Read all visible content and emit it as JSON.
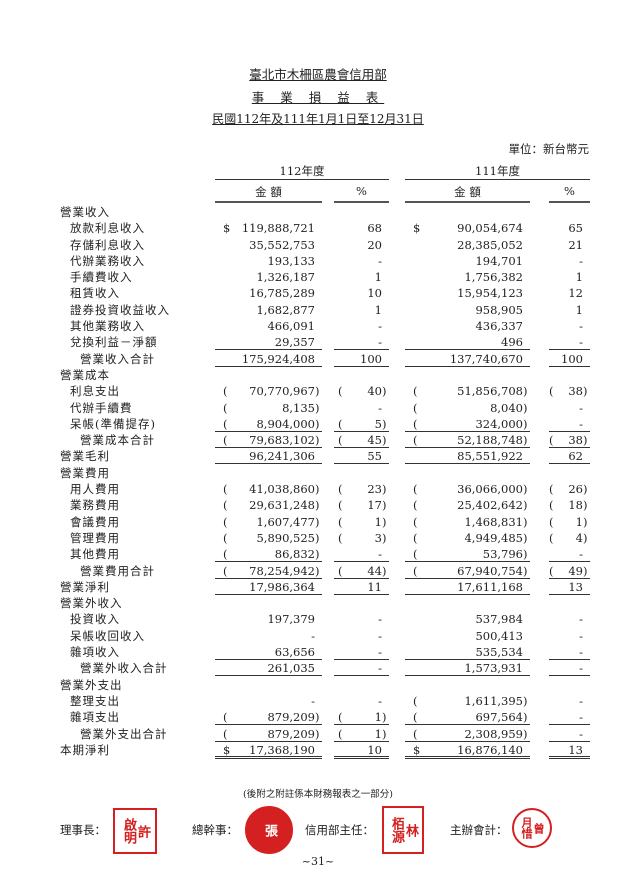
{
  "header": {
    "org": "臺北市木柵區農會信用部",
    "title": "事 業 損 益 表",
    "period": "民國112年及111年1月1日至12月31日",
    "unit": "單位：新台幣元"
  },
  "columns": {
    "year_a": "112年度",
    "year_b": "111年度",
    "amount": "金 額",
    "percent": "%"
  },
  "rows": [
    {
      "label": "營業收入",
      "indent": 0
    },
    {
      "label": "放款利息收入",
      "indent": 1,
      "a": {
        "pre": "$",
        "v": "119,888,721"
      },
      "pa": {
        "v": "68"
      },
      "b": {
        "pre": "$",
        "v": "90,054,674"
      },
      "pb": {
        "v": "65"
      }
    },
    {
      "label": "存儲利息收入",
      "indent": 1,
      "a": {
        "v": "35,552,753"
      },
      "pa": {
        "v": "20"
      },
      "b": {
        "v": "28,385,052"
      },
      "pb": {
        "v": "21"
      }
    },
    {
      "label": "代辦業務收入",
      "indent": 1,
      "a": {
        "v": "193,133"
      },
      "pa": {
        "v": "-"
      },
      "b": {
        "v": "194,701"
      },
      "pb": {
        "v": "-"
      }
    },
    {
      "label": "手續費收入",
      "indent": 1,
      "a": {
        "v": "1,326,187"
      },
      "pa": {
        "v": "1"
      },
      "b": {
        "v": "1,756,382"
      },
      "pb": {
        "v": "1"
      }
    },
    {
      "label": "租賃收入",
      "indent": 1,
      "a": {
        "v": "16,785,289"
      },
      "pa": {
        "v": "10"
      },
      "b": {
        "v": "15,954,123"
      },
      "pb": {
        "v": "12"
      }
    },
    {
      "label": "證券投資收益收入",
      "indent": 1,
      "a": {
        "v": "1,682,877"
      },
      "pa": {
        "v": "1"
      },
      "b": {
        "v": "958,905"
      },
      "pb": {
        "v": "1"
      }
    },
    {
      "label": "其他業務收入",
      "indent": 1,
      "a": {
        "v": "466,091"
      },
      "pa": {
        "v": "-"
      },
      "b": {
        "v": "436,337"
      },
      "pb": {
        "v": "-"
      }
    },
    {
      "label": "兌換利益－淨額",
      "indent": 1,
      "rule": "single",
      "a": {
        "v": "29,357"
      },
      "pa": {
        "v": "-"
      },
      "b": {
        "v": "496"
      },
      "pb": {
        "v": "-"
      }
    },
    {
      "label": "營業收入合計",
      "indent": 2,
      "rule": "single",
      "a": {
        "v": "175,924,408"
      },
      "pa": {
        "v": "100"
      },
      "b": {
        "v": "137,740,670"
      },
      "pb": {
        "v": "100"
      }
    },
    {
      "label": "營業成本",
      "indent": 0
    },
    {
      "label": "利息支出",
      "indent": 1,
      "a": {
        "v": "70,770,967",
        "neg": true
      },
      "pa": {
        "v": "40",
        "neg": true
      },
      "b": {
        "v": "51,856,708",
        "neg": true
      },
      "pb": {
        "v": "38",
        "neg": true
      }
    },
    {
      "label": "代辦手續費",
      "indent": 1,
      "a": {
        "v": "8,135",
        "neg": true
      },
      "pa": {
        "v": "-"
      },
      "b": {
        "v": "8,040",
        "neg": true
      },
      "pb": {
        "v": "-"
      }
    },
    {
      "label": "呆帳(準備提存)",
      "indent": 1,
      "rule": "single",
      "a": {
        "v": "8,904,000",
        "neg": true
      },
      "pa": {
        "v": "5",
        "neg": true
      },
      "b": {
        "v": "324,000",
        "neg": true
      },
      "pb": {
        "v": "-"
      }
    },
    {
      "label": "營業成本合計",
      "indent": 2,
      "rule": "single",
      "a": {
        "v": "79,683,102",
        "neg": true
      },
      "pa": {
        "v": "45",
        "neg": true
      },
      "b": {
        "v": "52,188,748",
        "neg": true
      },
      "pb": {
        "v": "38",
        "neg": true
      }
    },
    {
      "label": "營業毛利",
      "indent": 0,
      "rule": "single",
      "a": {
        "v": "96,241,306"
      },
      "pa": {
        "v": "55"
      },
      "b": {
        "v": "85,551,922"
      },
      "pb": {
        "v": "62"
      }
    },
    {
      "label": "營業費用",
      "indent": 0
    },
    {
      "label": "用人費用",
      "indent": 1,
      "a": {
        "v": "41,038,860",
        "neg": true
      },
      "pa": {
        "v": "23",
        "neg": true
      },
      "b": {
        "v": "36,066,000",
        "neg": true
      },
      "pb": {
        "v": "26",
        "neg": true
      }
    },
    {
      "label": "業務費用",
      "indent": 1,
      "a": {
        "v": "29,631,248",
        "neg": true
      },
      "pa": {
        "v": "17",
        "neg": true
      },
      "b": {
        "v": "25,402,642",
        "neg": true
      },
      "pb": {
        "v": "18",
        "neg": true
      }
    },
    {
      "label": "會議費用",
      "indent": 1,
      "a": {
        "v": "1,607,477",
        "neg": true
      },
      "pa": {
        "v": "1",
        "neg": true
      },
      "b": {
        "v": "1,468,831",
        "neg": true
      },
      "pb": {
        "v": "1",
        "neg": true
      }
    },
    {
      "label": "管理費用",
      "indent": 1,
      "a": {
        "v": "5,890,525",
        "neg": true
      },
      "pa": {
        "v": "3",
        "neg": true
      },
      "b": {
        "v": "4,949,485",
        "neg": true
      },
      "pb": {
        "v": "4",
        "neg": true
      }
    },
    {
      "label": "其他費用",
      "indent": 1,
      "rule": "single",
      "a": {
        "v": "86,832",
        "neg": true
      },
      "pa": {
        "v": "-"
      },
      "b": {
        "v": "53,796",
        "neg": true
      },
      "pb": {
        "v": "-"
      }
    },
    {
      "label": "營業費用合計",
      "indent": 2,
      "rule": "single",
      "a": {
        "v": "78,254,942",
        "neg": true
      },
      "pa": {
        "v": "44",
        "neg": true
      },
      "b": {
        "v": "67,940,754",
        "neg": true
      },
      "pb": {
        "v": "49",
        "neg": true
      }
    },
    {
      "label": "營業淨利",
      "indent": 0,
      "rule": "single",
      "a": {
        "v": "17,986,364"
      },
      "pa": {
        "v": "11"
      },
      "b": {
        "v": "17,611,168"
      },
      "pb": {
        "v": "13"
      }
    },
    {
      "label": "營業外收入",
      "indent": 0
    },
    {
      "label": "投資收入",
      "indent": 1,
      "a": {
        "v": "197,379"
      },
      "pa": {
        "v": "-"
      },
      "b": {
        "v": "537,984"
      },
      "pb": {
        "v": "-"
      }
    },
    {
      "label": "呆帳收回收入",
      "indent": 1,
      "a": {
        "v": "-"
      },
      "pa": {
        "v": "-"
      },
      "b": {
        "v": "500,413"
      },
      "pb": {
        "v": "-"
      }
    },
    {
      "label": "雜項收入",
      "indent": 1,
      "rule": "single",
      "a": {
        "v": "63,656"
      },
      "pa": {
        "v": "-"
      },
      "b": {
        "v": "535,534"
      },
      "pb": {
        "v": "-"
      }
    },
    {
      "label": "營業外收入合計",
      "indent": 2,
      "rule": "single",
      "a": {
        "v": "261,035"
      },
      "pa": {
        "v": "-"
      },
      "b": {
        "v": "1,573,931"
      },
      "pb": {
        "v": "-"
      }
    },
    {
      "label": "營業外支出",
      "indent": 0
    },
    {
      "label": "整理支出",
      "indent": 1,
      "a": {
        "v": "-"
      },
      "pa": {
        "v": "-"
      },
      "b": {
        "v": "1,611,395",
        "neg": true
      },
      "pb": {
        "v": "-"
      }
    },
    {
      "label": "雜項支出",
      "indent": 1,
      "rule": "single",
      "a": {
        "v": "879,209",
        "neg": true
      },
      "pa": {
        "v": "1",
        "neg": true
      },
      "b": {
        "v": "697,564",
        "neg": true
      },
      "pb": {
        "v": "-"
      }
    },
    {
      "label": "營業外支出合計",
      "indent": 2,
      "rule": "single",
      "a": {
        "v": "879,209",
        "neg": true
      },
      "pa": {
        "v": "1",
        "neg": true
      },
      "b": {
        "v": "2,308,959",
        "neg": true
      },
      "pb": {
        "v": "-"
      }
    },
    {
      "label": "本期淨利",
      "indent": 0,
      "rule": "double",
      "a": {
        "pre": "$",
        "v": "17,368,190"
      },
      "pa": {
        "v": "10"
      },
      "b": {
        "pre": "$",
        "v": "16,876,140"
      },
      "pb": {
        "v": "13"
      }
    }
  ],
  "footer": {
    "note": "(後附之附註係本財務報表之一部分)",
    "signatures": [
      {
        "role": "理事長：",
        "stamp": "許啟明"
      },
      {
        "role": "總幹事：",
        "stamp": "張"
      },
      {
        "role": "信用部主任：",
        "stamp": "林栢源"
      },
      {
        "role": "主辦會計：",
        "stamp": "曾月惜"
      }
    ],
    "page": "~31~"
  },
  "colors": {
    "stamp": "#d42020",
    "text": "#222222"
  }
}
